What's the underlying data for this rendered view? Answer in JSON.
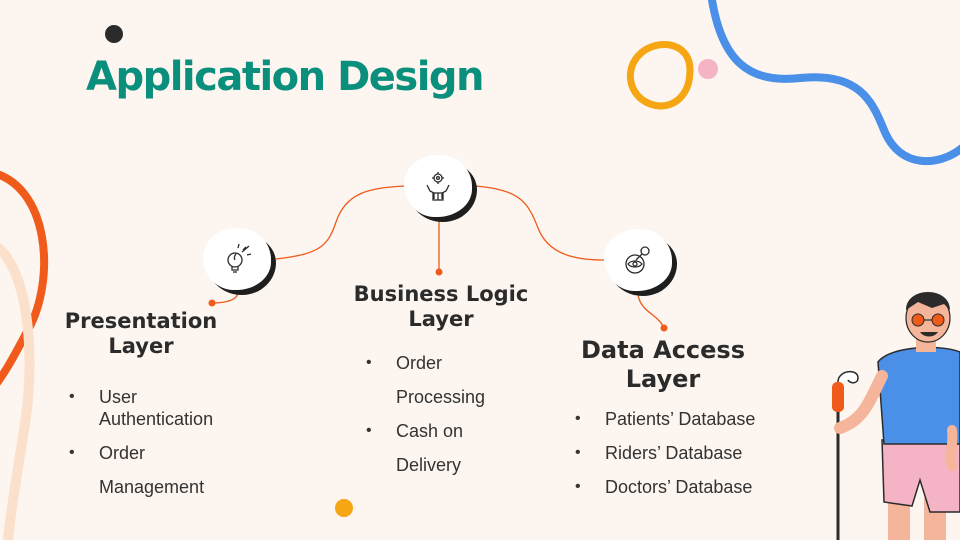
{
  "slide": {
    "title": "Application Design",
    "colors": {
      "background": "#fcf5f0",
      "title": "#0b8f7d",
      "connector": "#f05a1a",
      "text": "#2b2b2b"
    },
    "nodes": [
      {
        "icon": "lightbulb-icon",
        "heading_lines": [
          "Presentation",
          "Layer"
        ],
        "bullets": [
          "User Authentication",
          "Order Management"
        ]
      },
      {
        "icon": "hands-gear-icon",
        "heading_lines": [
          "Business Logic",
          "Layer"
        ],
        "bullets": [
          "Order Processing",
          "Cash on Delivery"
        ]
      },
      {
        "icon": "eye-key-icon",
        "heading_lines": [
          "Data Access",
          "Layer"
        ],
        "bullets": [
          "Patients’ Database",
          "Riders’ Database",
          "Doctors’ Database"
        ]
      }
    ]
  }
}
